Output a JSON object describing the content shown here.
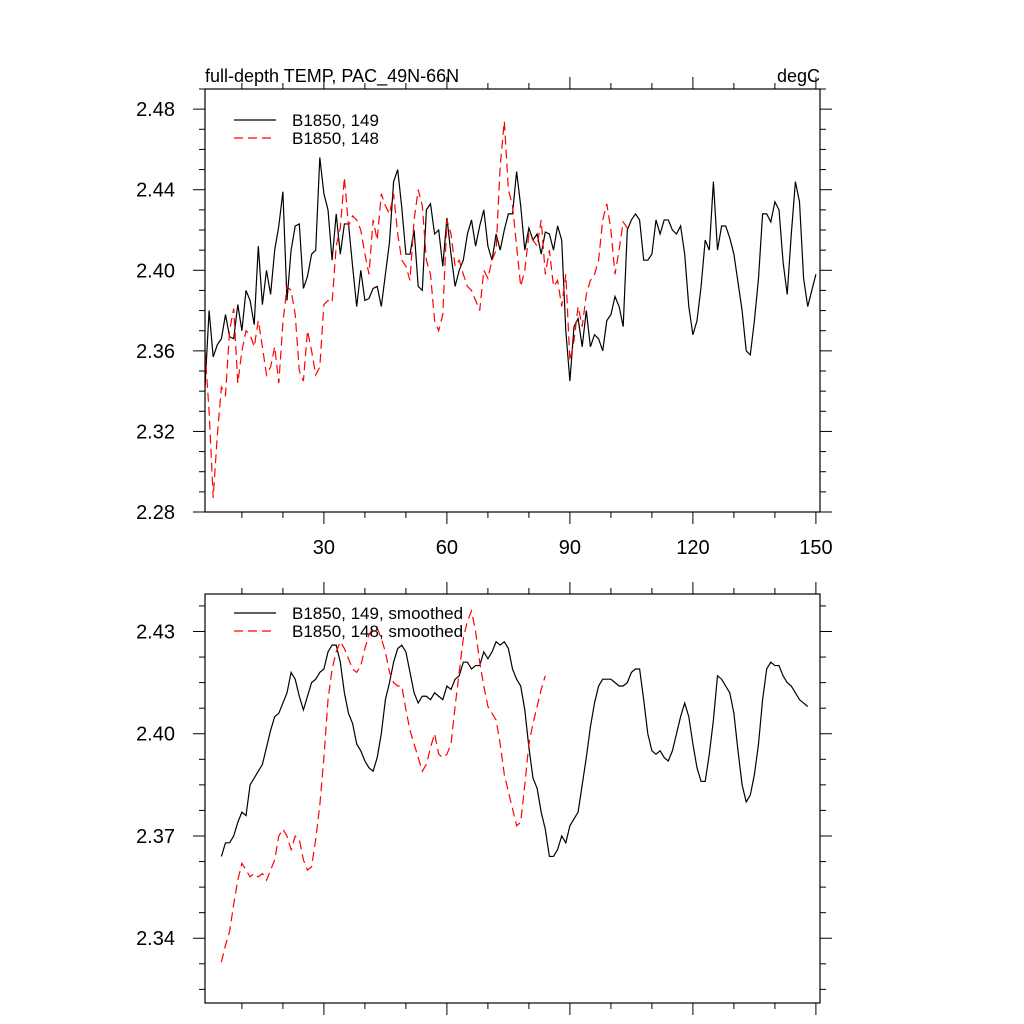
{
  "chart_data": [
    {
      "type": "line",
      "title": "full-depth TEMP, PAC_49N-66N",
      "units": "degC",
      "xlim": [
        1,
        151
      ],
      "ylim": [
        2.28,
        2.49
      ],
      "xticks": [
        30,
        60,
        90,
        120,
        150
      ],
      "xtick_labels": [
        "30",
        "60",
        "90",
        "120",
        "150"
      ],
      "yticks": [
        2.28,
        2.32,
        2.36,
        2.4,
        2.44,
        2.48
      ],
      "ytick_labels": [
        "2.28",
        "2.32",
        "2.36",
        "2.40",
        "2.44",
        "2.48"
      ],
      "legend_position": "top-left",
      "grid": false,
      "series": [
        {
          "name": "B1850, 149",
          "color": "#000000",
          "style": "solid",
          "x_start": 1,
          "values": [
            2.342,
            2.38,
            2.357,
            2.363,
            2.366,
            2.378,
            2.367,
            2.366,
            2.383,
            2.37,
            2.39,
            2.385,
            2.373,
            2.412,
            2.383,
            2.4,
            2.388,
            2.41,
            2.422,
            2.439,
            2.385,
            2.41,
            2.422,
            2.423,
            2.391,
            2.397,
            2.408,
            2.41,
            2.456,
            2.438,
            2.43,
            2.405,
            2.428,
            2.408,
            2.423,
            2.423,
            2.402,
            2.382,
            2.4,
            2.385,
            2.386,
            2.391,
            2.392,
            2.382,
            2.398,
            2.414,
            2.444,
            2.45,
            2.431,
            2.408,
            2.408,
            2.42,
            2.392,
            2.39,
            2.43,
            2.433,
            2.418,
            2.42,
            2.402,
            2.426,
            2.408,
            2.392,
            2.4,
            2.405,
            2.418,
            2.425,
            2.412,
            2.422,
            2.43,
            2.412,
            2.405,
            2.418,
            2.41,
            2.42,
            2.428,
            2.428,
            2.449,
            2.432,
            2.41,
            2.421,
            2.415,
            2.418,
            2.408,
            2.419,
            2.418,
            2.41,
            2.422,
            2.415,
            2.37,
            2.345,
            2.372,
            2.376,
            2.362,
            2.38,
            2.362,
            2.368,
            2.366,
            2.36,
            2.375,
            2.378,
            2.387,
            2.382,
            2.372,
            2.42,
            2.425,
            2.428,
            2.425,
            2.405,
            2.405,
            2.408,
            2.425,
            2.418,
            2.425,
            2.425,
            2.42,
            2.418,
            2.422,
            2.408,
            2.382,
            2.368,
            2.375,
            2.392,
            2.415,
            2.41,
            2.444,
            2.41,
            2.422,
            2.422,
            2.416,
            2.408,
            2.394,
            2.38,
            2.36,
            2.358,
            2.375,
            2.396,
            2.428,
            2.428,
            2.424,
            2.434,
            2.43,
            2.404,
            2.388,
            2.418,
            2.444,
            2.434,
            2.396,
            2.382,
            2.39,
            2.398
          ]
        },
        {
          "name": "B1850, 148",
          "color": "#ff0000",
          "style": "dashed",
          "x_start": 1,
          "values": [
            2.36,
            2.33,
            2.287,
            2.318,
            2.342,
            2.338,
            2.37,
            2.381,
            2.344,
            2.36,
            2.37,
            2.368,
            2.362,
            2.375,
            2.362,
            2.348,
            2.352,
            2.362,
            2.344,
            2.374,
            2.392,
            2.39,
            2.378,
            2.35,
            2.345,
            2.37,
            2.36,
            2.348,
            2.352,
            2.383,
            2.385,
            2.384,
            2.412,
            2.421,
            2.446,
            2.422,
            2.427,
            2.425,
            2.42,
            2.408,
            2.398,
            2.425,
            2.415,
            2.438,
            2.432,
            2.428,
            2.438,
            2.418,
            2.405,
            2.402,
            2.395,
            2.425,
            2.44,
            2.432,
            2.405,
            2.398,
            2.375,
            2.37,
            2.378,
            2.425,
            2.418,
            2.402,
            2.405,
            2.398,
            2.392,
            2.39,
            2.385,
            2.38,
            2.4,
            2.396,
            2.405,
            2.41,
            2.452,
            2.474,
            2.44,
            2.432,
            2.412,
            2.392,
            2.4,
            2.418,
            2.415,
            2.412,
            2.425,
            2.398,
            2.41,
            2.392,
            2.395,
            2.382,
            2.398,
            2.355,
            2.365,
            2.382,
            2.372,
            2.388,
            2.395,
            2.398,
            2.405,
            2.425,
            2.433,
            2.42,
            2.398,
            2.41,
            2.424,
            2.421
          ]
        }
      ]
    },
    {
      "type": "line",
      "title": "",
      "xlim": [
        1,
        151
      ],
      "ylim": [
        2.321,
        2.441
      ],
      "xticks": [
        30,
        60,
        90,
        120,
        150
      ],
      "yticks": [
        2.34,
        2.37,
        2.4,
        2.43
      ],
      "ytick_labels": [
        "2.34",
        "2.37",
        "2.40",
        "2.43"
      ],
      "legend_position": "top-left",
      "grid": false,
      "series": [
        {
          "name": "B1850, 149, smoothed",
          "color": "#000000",
          "style": "solid",
          "x_start": 5,
          "values": [
            2.364,
            2.368,
            2.368,
            2.37,
            2.374,
            2.377,
            2.376,
            2.385,
            2.387,
            2.389,
            2.391,
            2.396,
            2.401,
            2.405,
            2.406,
            2.409,
            2.412,
            2.418,
            2.416,
            2.411,
            2.407,
            2.411,
            2.415,
            2.416,
            2.418,
            2.419,
            2.424,
            2.426,
            2.426,
            2.421,
            2.412,
            2.406,
            2.403,
            2.397,
            2.395,
            2.392,
            2.39,
            2.389,
            2.393,
            2.4,
            2.41,
            2.415,
            2.421,
            2.425,
            2.426,
            2.424,
            2.418,
            2.412,
            2.409,
            2.411,
            2.411,
            2.41,
            2.412,
            2.411,
            2.41,
            2.414,
            2.413,
            2.416,
            2.417,
            2.421,
            2.421,
            2.419,
            2.42,
            2.42,
            2.424,
            2.422,
            2.424,
            2.427,
            2.426,
            2.427,
            2.425,
            2.419,
            2.416,
            2.414,
            2.407,
            2.396,
            2.387,
            2.384,
            2.377,
            2.372,
            2.364,
            2.364,
            2.366,
            2.37,
            2.368,
            2.373,
            2.375,
            2.377,
            2.385,
            2.393,
            2.402,
            2.409,
            2.414,
            2.416,
            2.416,
            2.416,
            2.415,
            2.414,
            2.414,
            2.415,
            2.418,
            2.419,
            2.419,
            2.41,
            2.4,
            2.395,
            2.394,
            2.395,
            2.393,
            2.392,
            2.395,
            2.4,
            2.405,
            2.409,
            2.405,
            2.397,
            2.39,
            2.386,
            2.386,
            2.394,
            2.404,
            2.417,
            2.416,
            2.414,
            2.412,
            2.406,
            2.395,
            2.385,
            2.38,
            2.382,
            2.388,
            2.397,
            2.41,
            2.419,
            2.421,
            2.42,
            2.42,
            2.417,
            2.415,
            2.414,
            2.412,
            2.41,
            2.409,
            2.408
          ]
        },
        {
          "name": "B1850, 148, smoothed",
          "color": "#ff0000",
          "style": "dashed",
          "x_start": 5,
          "values": [
            2.333,
            2.338,
            2.342,
            2.35,
            2.357,
            2.362,
            2.36,
            2.358,
            2.359,
            2.358,
            2.359,
            2.357,
            2.36,
            2.363,
            2.37,
            2.372,
            2.37,
            2.366,
            2.37,
            2.369,
            2.363,
            2.36,
            2.361,
            2.369,
            2.379,
            2.393,
            2.41,
            2.419,
            2.424,
            2.427,
            2.425,
            2.422,
            2.419,
            2.418,
            2.42,
            2.425,
            2.429,
            2.431,
            2.431,
            2.428,
            2.424,
            2.418,
            2.415,
            2.414,
            2.414,
            2.407,
            2.401,
            2.397,
            2.393,
            2.389,
            2.391,
            2.396,
            2.4,
            2.394,
            2.393,
            2.394,
            2.397,
            2.408,
            2.418,
            2.428,
            2.433,
            2.436,
            2.43,
            2.421,
            2.414,
            2.408,
            2.406,
            2.404,
            2.397,
            2.388,
            2.383,
            2.378,
            2.373,
            2.374,
            2.385,
            2.397,
            2.403,
            2.408,
            2.413,
            2.417
          ]
        }
      ]
    }
  ]
}
